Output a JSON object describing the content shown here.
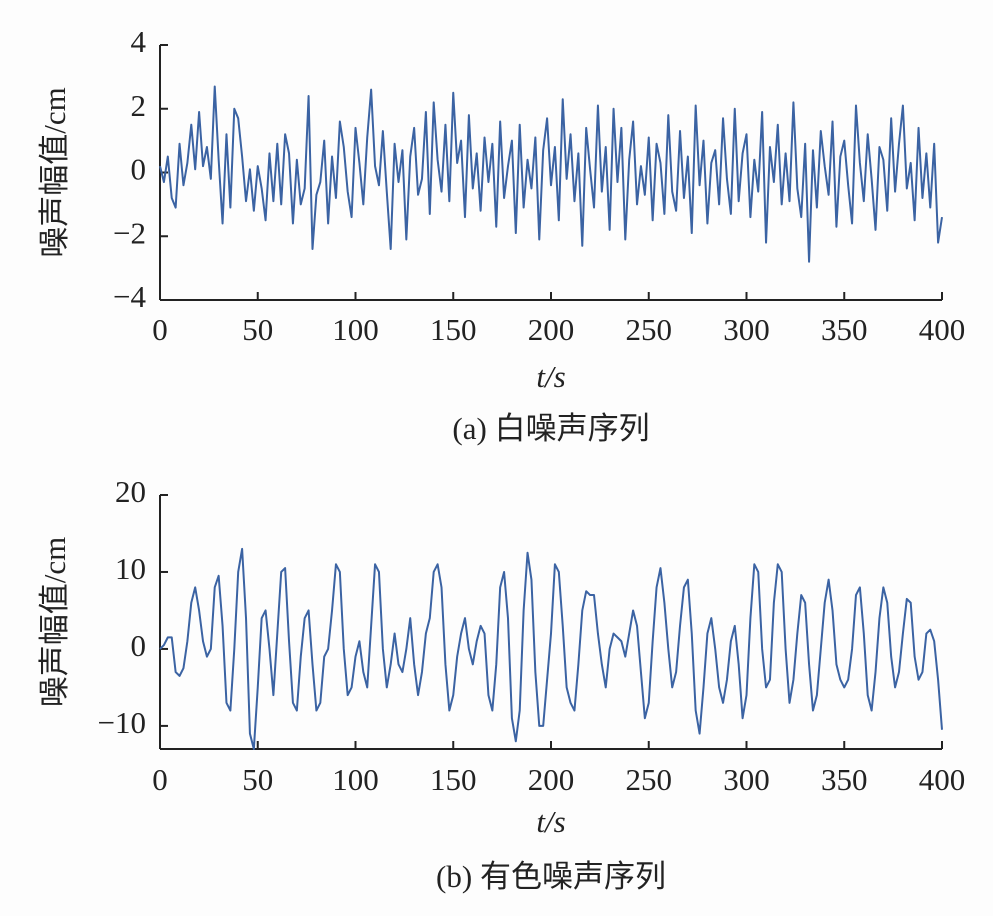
{
  "chart_data": [
    {
      "type": "line",
      "title": "(a) 白噪声序列",
      "xlabel": "t/s",
      "ylabel": "噪声幅值/cm",
      "xlim": [
        0,
        400
      ],
      "xticks": [
        0,
        50,
        100,
        150,
        200,
        250,
        300,
        350,
        400
      ],
      "ylim": [
        -4,
        4
      ],
      "yticks": [
        {
          "value": -4,
          "label": "−4"
        },
        {
          "value": -2,
          "label": "−2"
        },
        0,
        2,
        4
      ],
      "x": [
        0,
        2,
        4,
        6,
        8,
        10,
        12,
        14,
        16,
        18,
        20,
        22,
        24,
        26,
        28,
        30,
        32,
        34,
        36,
        38,
        40,
        42,
        44,
        46,
        48,
        50,
        52,
        54,
        56,
        58,
        60,
        62,
        64,
        66,
        68,
        70,
        72,
        74,
        76,
        78,
        80,
        82,
        84,
        86,
        88,
        90,
        92,
        94,
        96,
        98,
        100,
        102,
        104,
        106,
        108,
        110,
        112,
        114,
        116,
        118,
        120,
        122,
        124,
        126,
        128,
        130,
        132,
        134,
        136,
        138,
        140,
        142,
        144,
        146,
        148,
        150,
        152,
        154,
        156,
        158,
        160,
        162,
        164,
        166,
        168,
        170,
        172,
        174,
        176,
        178,
        180,
        182,
        184,
        186,
        188,
        190,
        192,
        194,
        196,
        198,
        200,
        202,
        204,
        206,
        208,
        210,
        212,
        214,
        216,
        218,
        220,
        222,
        224,
        226,
        228,
        230,
        232,
        234,
        236,
        238,
        240,
        242,
        244,
        246,
        248,
        250,
        252,
        254,
        256,
        258,
        260,
        262,
        264,
        266,
        268,
        270,
        272,
        274,
        276,
        278,
        280,
        282,
        284,
        286,
        288,
        290,
        292,
        294,
        296,
        298,
        300,
        302,
        304,
        306,
        308,
        310,
        312,
        314,
        316,
        318,
        320,
        322,
        324,
        326,
        328,
        330,
        332,
        334,
        336,
        338,
        340,
        342,
        344,
        346,
        348,
        350,
        352,
        354,
        356,
        358,
        360,
        362,
        364,
        366,
        368,
        370,
        372,
        374,
        376,
        378,
        380,
        382,
        384,
        386,
        388,
        390,
        392,
        394,
        396,
        398,
        400
      ],
      "series": [
        {
          "color": "#3b63a3",
          "values": [
            0.2,
            -0.3,
            0.5,
            -0.8,
            -1.1,
            0.9,
            -0.4,
            0.3,
            1.5,
            0.1,
            1.9,
            0.2,
            0.8,
            -0.2,
            2.7,
            0.4,
            -1.6,
            1.2,
            -1.1,
            2.0,
            1.7,
            0.5,
            -0.9,
            0.1,
            -1.2,
            0.2,
            -0.5,
            -1.5,
            0.6,
            -0.9,
            0.9,
            -1.0,
            1.2,
            0.6,
            -1.6,
            0.4,
            -1.0,
            -0.5,
            2.4,
            -2.4,
            -0.7,
            -0.3,
            1.0,
            -1.6,
            0.5,
            -0.8,
            1.6,
            0.8,
            -0.6,
            -1.4,
            1.4,
            0.3,
            -1.0,
            1.1,
            2.6,
            0.2,
            -0.4,
            1.3,
            -0.6,
            -2.4,
            0.9,
            -0.3,
            0.7,
            -2.1,
            0.5,
            1.4,
            -0.7,
            -0.2,
            1.9,
            -1.3,
            2.2,
            0.4,
            -0.6,
            1.5,
            -0.9,
            2.5,
            0.3,
            1.0,
            -1.4,
            1.8,
            -0.5,
            0.6,
            -1.2,
            1.1,
            -0.3,
            0.9,
            -1.7,
            1.6,
            -0.8,
            0.2,
            1.0,
            -1.9,
            1.5,
            -1.1,
            0.4,
            -0.5,
            1.1,
            -2.1,
            0.7,
            1.7,
            -0.4,
            0.8,
            -1.5,
            2.3,
            -0.2,
            1.2,
            -0.9,
            0.6,
            -2.3,
            1.4,
            0.1,
            -1.1,
            2.1,
            -0.6,
            0.8,
            -1.8,
            2.0,
            -0.3,
            1.4,
            -2.1,
            0.4,
            1.6,
            -1.0,
            0.2,
            -0.7,
            1.1,
            -1.5,
            0.9,
            0.3,
            -1.3,
            1.8,
            -0.6,
            -1.2,
            1.3,
            -0.8,
            0.5,
            -1.9,
            2.1,
            -0.4,
            1.0,
            -1.6,
            0.3,
            0.7,
            -1.0,
            1.7,
            -0.2,
            -1.3,
            2.0,
            -0.9,
            0.6,
            1.2,
            -1.4,
            0.4,
            -0.6,
            1.9,
            -2.2,
            0.8,
            -0.3,
            1.5,
            -1.0,
            0.6,
            -0.9,
            2.2,
            -0.5,
            -1.4,
            0.9,
            -2.8,
            0.7,
            -1.1,
            1.3,
            0.2,
            -0.7,
            1.6,
            -1.7,
            0.5,
            1.0,
            -0.4,
            -1.6,
            2.1,
            0.3,
            -0.9,
            1.2,
            -0.2,
            -1.8,
            0.8,
            0.4,
            -1.2,
            1.7,
            -0.6,
            0.9,
            2.1,
            -0.5,
            0.3,
            -1.5,
            1.4,
            -0.8,
            0.6,
            -1.1,
            0.9,
            -2.2,
            -1.4
          ]
        }
      ]
    },
    {
      "type": "line",
      "title": "(b) 有色噪声序列",
      "xlabel": "t/s",
      "ylabel": "噪声幅值/cm",
      "xlim": [
        0,
        400
      ],
      "xticks": [
        0,
        50,
        100,
        150,
        200,
        250,
        300,
        350,
        400
      ],
      "ylim": [
        -13,
        20
      ],
      "yticks": [
        {
          "value": -10,
          "label": "−10"
        },
        0,
        10,
        20
      ],
      "x": [
        0,
        2,
        4,
        6,
        8,
        10,
        12,
        14,
        16,
        18,
        20,
        22,
        24,
        26,
        28,
        30,
        32,
        34,
        36,
        38,
        40,
        42,
        44,
        46,
        48,
        50,
        52,
        54,
        56,
        58,
        60,
        62,
        64,
        66,
        68,
        70,
        72,
        74,
        76,
        78,
        80,
        82,
        84,
        86,
        88,
        90,
        92,
        94,
        96,
        98,
        100,
        102,
        104,
        106,
        108,
        110,
        112,
        114,
        116,
        118,
        120,
        122,
        124,
        126,
        128,
        130,
        132,
        134,
        136,
        138,
        140,
        142,
        144,
        146,
        148,
        150,
        152,
        154,
        156,
        158,
        160,
        162,
        164,
        166,
        168,
        170,
        172,
        174,
        176,
        178,
        180,
        182,
        184,
        186,
        188,
        190,
        192,
        194,
        196,
        198,
        200,
        202,
        204,
        206,
        208,
        210,
        212,
        214,
        216,
        218,
        220,
        222,
        224,
        226,
        228,
        230,
        232,
        234,
        236,
        238,
        240,
        242,
        244,
        246,
        248,
        250,
        252,
        254,
        256,
        258,
        260,
        262,
        264,
        266,
        268,
        270,
        272,
        274,
        276,
        278,
        280,
        282,
        284,
        286,
        288,
        290,
        292,
        294,
        296,
        298,
        300,
        302,
        304,
        306,
        308,
        310,
        312,
        314,
        316,
        318,
        320,
        322,
        324,
        326,
        328,
        330,
        332,
        334,
        336,
        338,
        340,
        342,
        344,
        346,
        348,
        350,
        352,
        354,
        356,
        358,
        360,
        362,
        364,
        366,
        368,
        370,
        372,
        374,
        376,
        378,
        380,
        382,
        384,
        386,
        388,
        390,
        392,
        394,
        396,
        398,
        400
      ],
      "series": [
        {
          "color": "#3b63a3",
          "values": [
            0,
            0.5,
            1.5,
            1.5,
            -3,
            -3.5,
            -2.5,
            1,
            6,
            8,
            5,
            1,
            -1,
            0,
            8,
            9.5,
            3,
            -7,
            -8,
            0,
            10,
            13,
            4,
            -11,
            -13,
            -5,
            4,
            5,
            0,
            -6,
            2,
            10,
            10.5,
            1,
            -7,
            -8,
            -1,
            4,
            5,
            -2,
            -8,
            -7,
            -1,
            0,
            5,
            11,
            10,
            0,
            -6,
            -5,
            -1,
            1,
            -3,
            -5,
            3,
            11,
            10,
            0,
            -5,
            -2,
            2,
            -2,
            -3,
            0,
            4,
            -2,
            -6,
            -3,
            2,
            4,
            10,
            11,
            8,
            -2,
            -8,
            -6,
            -1,
            2,
            4,
            0,
            -2,
            1,
            3,
            2,
            -6,
            -8,
            -2,
            8,
            10,
            4,
            -9,
            -12,
            -8,
            5,
            12.5,
            9,
            -3,
            -10,
            -10,
            -4,
            2,
            11,
            10,
            3,
            -5,
            -7,
            -8,
            -2,
            5,
            7.5,
            7,
            7,
            2,
            -2,
            -5,
            0,
            2,
            1.5,
            1,
            -1,
            2,
            5,
            3,
            -3,
            -9,
            -7,
            1,
            8,
            10.5,
            6,
            0,
            -5,
            -3,
            3,
            8,
            9,
            2,
            -8,
            -11,
            -5,
            2,
            4,
            0,
            -5,
            -7,
            -4,
            1,
            3,
            -2,
            -9,
            -6,
            4,
            11,
            10,
            0,
            -5,
            -4,
            6,
            11,
            10,
            0,
            -7,
            -4,
            2,
            7,
            6,
            -2,
            -8,
            -6,
            0,
            6,
            9,
            5,
            -2,
            -4,
            -5,
            -4,
            0,
            7,
            8,
            2,
            -6,
            -8,
            -3,
            4,
            8,
            6,
            -1,
            -5,
            -3,
            2,
            6.5,
            6,
            -1,
            -4,
            -3,
            2,
            2.5,
            1,
            -4,
            -10.5
          ]
        }
      ]
    }
  ]
}
